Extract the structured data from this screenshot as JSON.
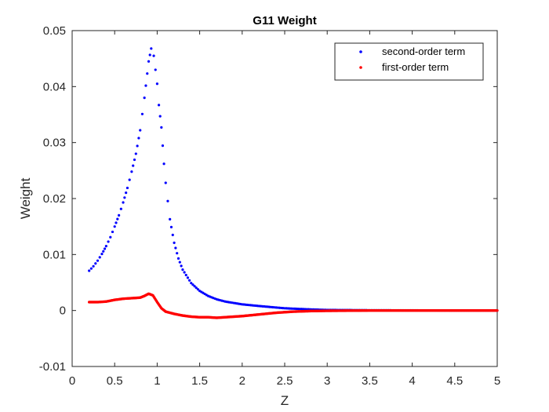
{
  "chart_data": {
    "type": "scatter",
    "title": "G11 Weight",
    "xlabel": "Z",
    "ylabel": "Weight",
    "xlim": [
      0,
      5
    ],
    "ylim": [
      -0.01,
      0.05
    ],
    "xticks": [
      "0",
      "0.5",
      "1",
      "1.5",
      "2",
      "2.5",
      "3",
      "3.5",
      "4",
      "4.5",
      "5"
    ],
    "yticks": [
      "-0.01",
      "0",
      "0.01",
      "0.02",
      "0.03",
      "0.04",
      "0.05"
    ],
    "grid": false,
    "legend_position": "top-right",
    "series": [
      {
        "name": "second-order term",
        "color": "#0000ff",
        "points": [
          [
            0.2,
            0.0071
          ],
          [
            0.25,
            0.0079
          ],
          [
            0.3,
            0.0089
          ],
          [
            0.35,
            0.0101
          ],
          [
            0.4,
            0.0115
          ],
          [
            0.45,
            0.0131
          ],
          [
            0.5,
            0.015
          ],
          [
            0.55,
            0.017
          ],
          [
            0.6,
            0.0193
          ],
          [
            0.65,
            0.0219
          ],
          [
            0.7,
            0.0248
          ],
          [
            0.75,
            0.028
          ],
          [
            0.8,
            0.0322
          ],
          [
            0.85,
            0.038
          ],
          [
            0.9,
            0.0445
          ],
          [
            0.93,
            0.0468
          ],
          [
            0.96,
            0.0455
          ],
          [
            1.0,
            0.0405
          ],
          [
            1.02,
            0.0367
          ],
          [
            1.05,
            0.0327
          ],
          [
            1.08,
            0.0262
          ],
          [
            1.1,
            0.0228
          ],
          [
            1.15,
            0.0163
          ],
          [
            1.2,
            0.0121
          ],
          [
            1.25,
            0.0093
          ],
          [
            1.3,
            0.0073
          ],
          [
            1.4,
            0.0049
          ],
          [
            1.5,
            0.0035
          ],
          [
            1.6,
            0.0026
          ],
          [
            1.7,
            0.002
          ],
          [
            1.8,
            0.0016
          ],
          [
            2.0,
            0.0011
          ],
          [
            2.2,
            0.0008
          ],
          [
            2.5,
            0.0004
          ],
          [
            2.8,
            0.0002
          ],
          [
            3.0,
            0.0001
          ],
          [
            3.5,
            5e-05
          ],
          [
            4.0,
            2e-05
          ],
          [
            4.5,
            1e-05
          ],
          [
            5.0,
            0.0
          ]
        ]
      },
      {
        "name": "first-order term",
        "color": "#ff0000",
        "points": [
          [
            0.2,
            0.0015
          ],
          [
            0.3,
            0.0015
          ],
          [
            0.4,
            0.0016
          ],
          [
            0.5,
            0.0019
          ],
          [
            0.6,
            0.0021
          ],
          [
            0.7,
            0.0022
          ],
          [
            0.8,
            0.0023
          ],
          [
            0.85,
            0.0026
          ],
          [
            0.9,
            0.003
          ],
          [
            0.95,
            0.0027
          ],
          [
            1.0,
            0.0015
          ],
          [
            1.05,
            0.0004
          ],
          [
            1.1,
            -0.0002
          ],
          [
            1.2,
            -0.0006
          ],
          [
            1.3,
            -0.0009
          ],
          [
            1.4,
            -0.0011
          ],
          [
            1.5,
            -0.0012
          ],
          [
            1.6,
            -0.0012
          ],
          [
            1.7,
            -0.0013
          ],
          [
            1.8,
            -0.0012
          ],
          [
            1.9,
            -0.0011
          ],
          [
            2.0,
            -0.001
          ],
          [
            2.2,
            -0.0007
          ],
          [
            2.4,
            -0.0004
          ],
          [
            2.6,
            -0.0002
          ],
          [
            2.8,
            -0.0001
          ],
          [
            3.0,
            -5e-05
          ],
          [
            3.5,
            0.0
          ],
          [
            4.0,
            0.0
          ],
          [
            4.5,
            0.0
          ],
          [
            5.0,
            0.0
          ]
        ]
      }
    ]
  }
}
